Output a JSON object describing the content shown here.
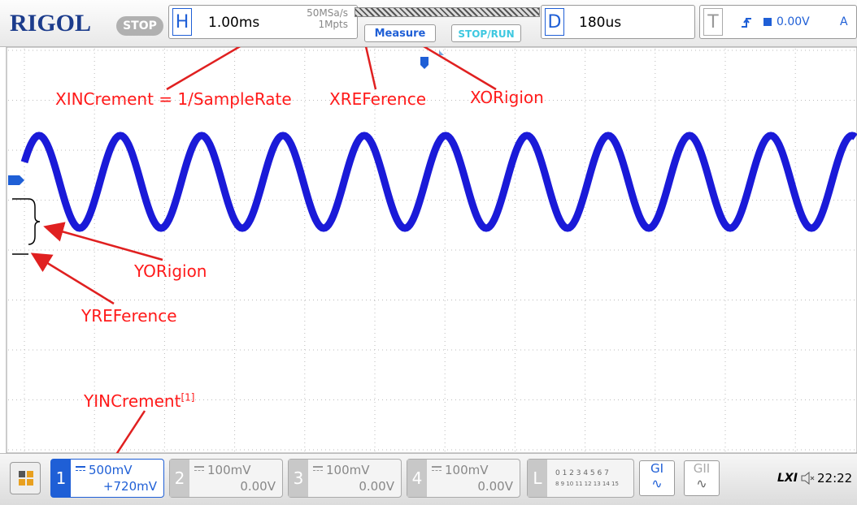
{
  "header": {
    "logo": "RIGOL",
    "status": "STOP",
    "h_label": "H",
    "timebase": "1.00ms",
    "sample_rate": "50MSa/s",
    "memory_depth": "1Mpts",
    "measure": "Measure",
    "stop_run": "STOP/RUN",
    "d_label": "D",
    "delay": "180us",
    "t_label": "T",
    "trigger_level": "0.00V",
    "trigger_source": "A"
  },
  "annotations": {
    "xincrement": "XINCrement = 1/SampleRate",
    "xreference": "XREFerence",
    "xorigin": "XORigion",
    "yorigin": "YORigion",
    "yreference": "YREFerence",
    "yincrement": "YINCrement",
    "yincrement_note": "[1]"
  },
  "footer": {
    "channels": [
      {
        "number": "1",
        "scale": "500mV",
        "offset": "+720mV"
      },
      {
        "number": "2",
        "scale": "100mV",
        "offset": "0.00V"
      },
      {
        "number": "3",
        "scale": "100mV",
        "offset": "0.00V"
      },
      {
        "number": "4",
        "scale": "100mV",
        "offset": "0.00V"
      }
    ],
    "logic_label": "L",
    "logic_row1": "0 1 2 3 4 5 6 7",
    "logic_row2": "8 9 10 11 12 13 14 15",
    "gen1": "GI",
    "gen2": "GII",
    "lxi": "LXI",
    "time": "22:22"
  }
}
